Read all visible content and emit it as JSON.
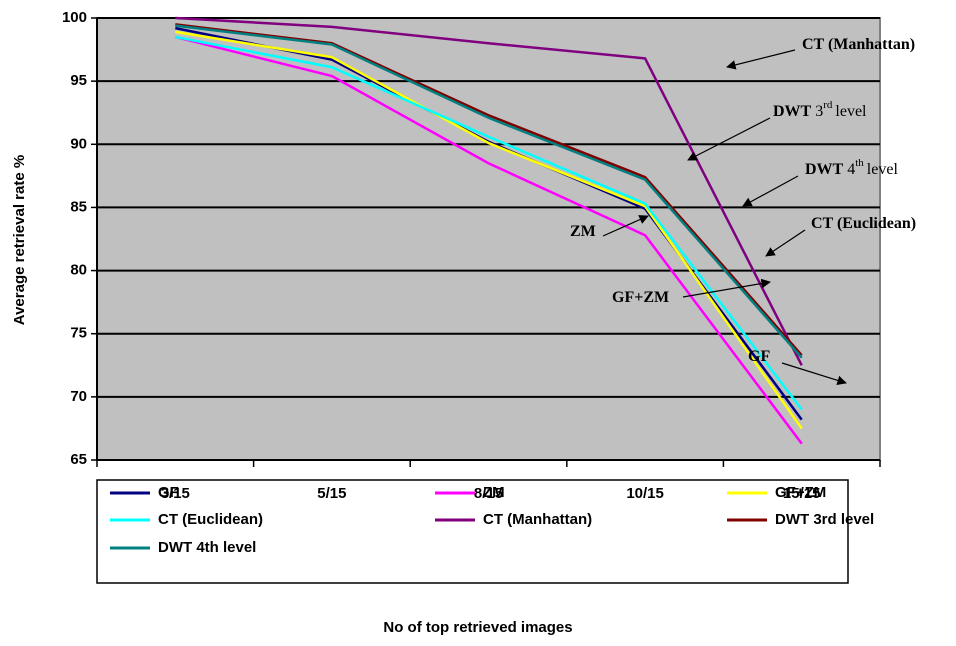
{
  "chart_data": {
    "type": "line",
    "y_label": "Average retrieval rate %",
    "x_label": "No of top retrieved images",
    "categories": [
      "3/15",
      "5/15",
      "8/15",
      "10/15",
      "15/15"
    ],
    "ylim": [
      65,
      100
    ],
    "yticks": [
      65,
      70,
      75,
      80,
      85,
      90,
      95,
      100
    ],
    "grid": true,
    "series": [
      {
        "name": "GF",
        "color": "#000080",
        "values": [
          99.2,
          96.7,
          90.2,
          84.9,
          68.2
        ]
      },
      {
        "name": "ZM",
        "color": "#ff00ff",
        "values": [
          98.5,
          95.4,
          88.5,
          82.8,
          66.3
        ]
      },
      {
        "name": "GF+ZM",
        "color": "#ffff00",
        "values": [
          98.9,
          96.9,
          90.1,
          85.1,
          67.5
        ]
      },
      {
        "name": "CT (Euclidean)",
        "color": "#00ffff",
        "values": [
          98.5,
          96.1,
          90.6,
          85.3,
          69.0
        ]
      },
      {
        "name": "CT (Manhattan)",
        "color": "#800080",
        "values": [
          100,
          99.3,
          98.0,
          96.8,
          72.5
        ]
      },
      {
        "name": "DWT 3rd level",
        "color": "#800000",
        "values": [
          99.5,
          98.0,
          92.3,
          87.4,
          73.3
        ]
      },
      {
        "name": "DWT 4th level",
        "color": "#008080",
        "values": [
          99.4,
          97.9,
          92.1,
          87.2,
          73.1
        ]
      }
    ],
    "annotations": [
      {
        "bold": "CT (Manhattan)"
      },
      {
        "bold": "DWT",
        "text": "3",
        "sup": "rd",
        "after": "level"
      },
      {
        "bold": "DWT",
        "text": "4",
        "sup": "th",
        "after": "level"
      },
      {
        "bold": "CT (Euclidean)"
      },
      {
        "bold": "ZM"
      },
      {
        "bold": "GF+ZM"
      },
      {
        "bold": "GF"
      }
    ]
  }
}
